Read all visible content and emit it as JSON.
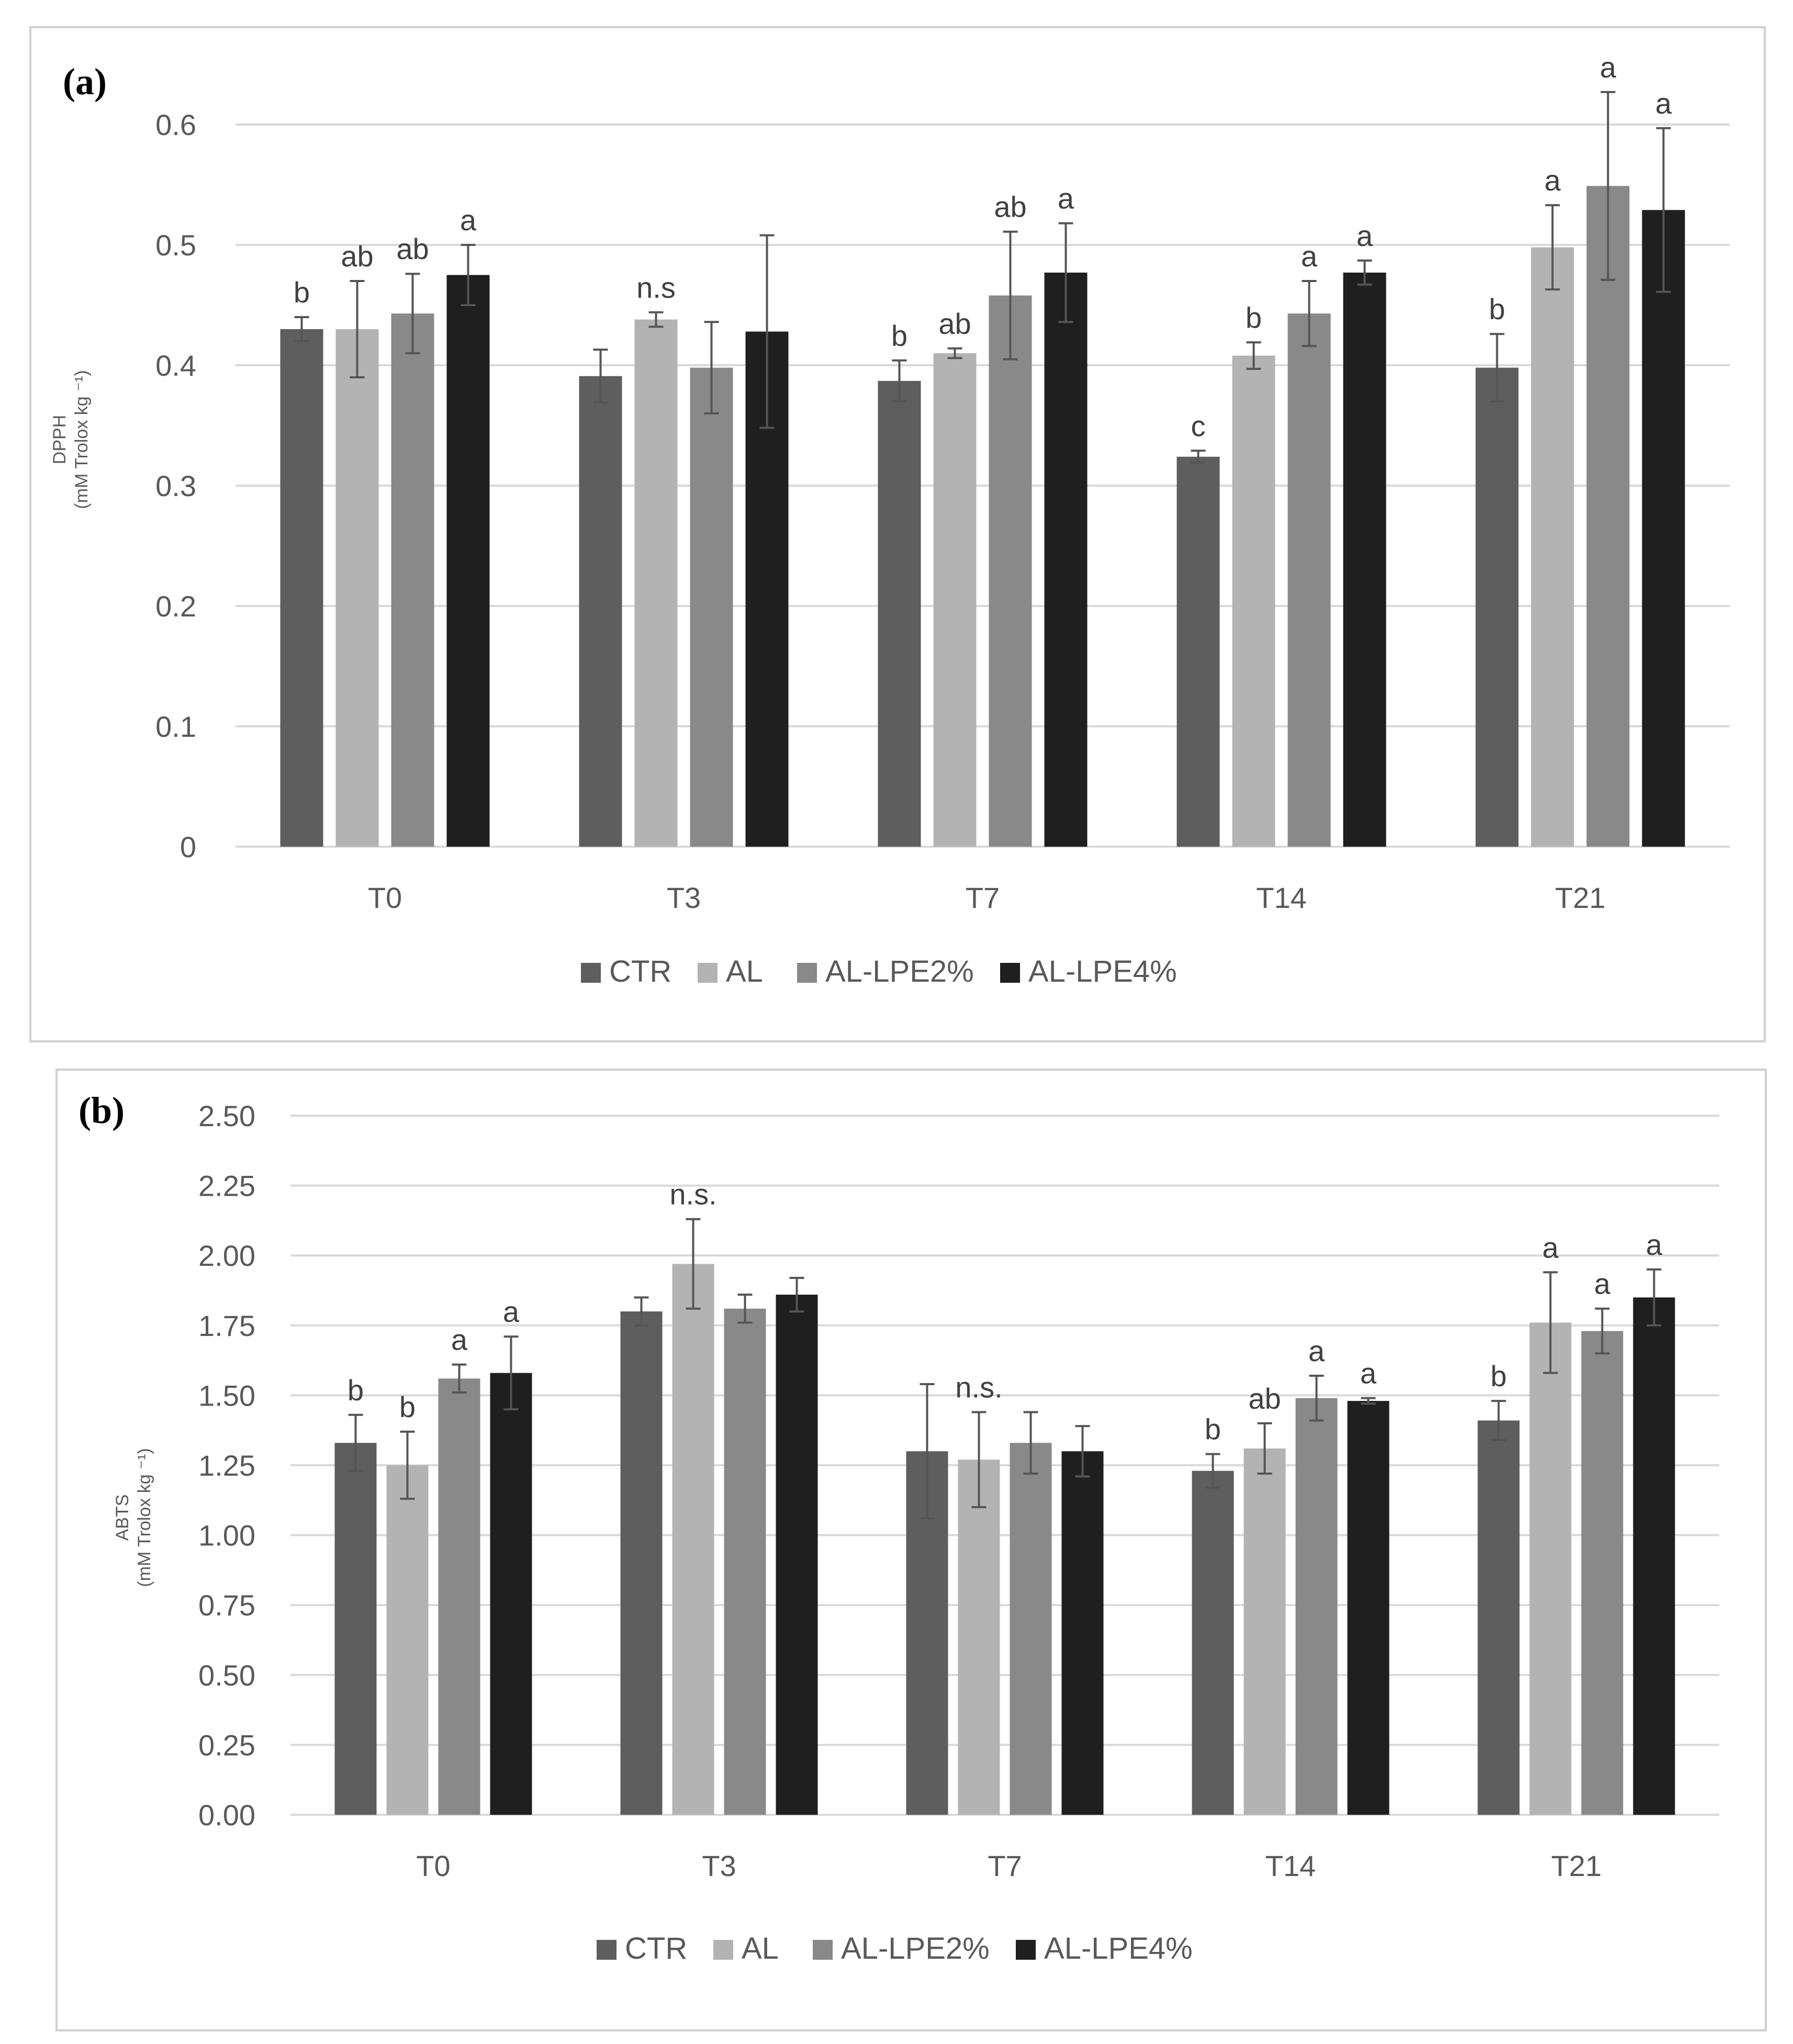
{
  "chart_data": [
    {
      "type": "bar",
      "panel_label": "(a)",
      "ylabel_line1": "DPPH",
      "ylabel_line2": "(mM Trolox kg ⁻¹)",
      "categories": [
        "T0",
        "T3",
        "T7",
        "T14",
        "T21"
      ],
      "ylim": [
        0,
        0.6
      ],
      "yticks": [
        "0",
        "0.1",
        "0.2",
        "0.3",
        "0.4",
        "0.5",
        "0.6"
      ],
      "ytick_values": [
        0,
        0.1,
        0.2,
        0.3,
        0.4,
        0.5,
        0.6
      ],
      "grid": true,
      "legend_position": "bottom",
      "series": [
        {
          "name": "CTR",
          "color": "#5e5e5e",
          "values": [
            0.43,
            0.391,
            0.387,
            0.324,
            0.398
          ],
          "errors": [
            0.01,
            0.022,
            0.017,
            0.005,
            0.028
          ],
          "labels": [
            "b",
            "",
            "b",
            "c",
            "b"
          ]
        },
        {
          "name": "AL",
          "color": "#b3b3b3",
          "values": [
            0.43,
            0.438,
            0.41,
            0.408,
            0.498
          ],
          "errors": [
            0.04,
            0.006,
            0.004,
            0.011,
            0.035
          ],
          "labels": [
            "ab",
            "n.s",
            "ab",
            "b",
            "a"
          ]
        },
        {
          "name": "AL-LPE2%",
          "color": "#898989",
          "values": [
            0.443,
            0.398,
            0.458,
            0.443,
            0.549
          ],
          "errors": [
            0.033,
            0.038,
            0.053,
            0.027,
            0.078
          ],
          "labels": [
            "ab",
            "",
            "ab",
            "a",
            "a"
          ]
        },
        {
          "name": "AL-LPE4%",
          "color": "#1f1f1f",
          "values": [
            0.475,
            0.428,
            0.477,
            0.477,
            0.529
          ],
          "errors": [
            0.025,
            0.08,
            0.041,
            0.01,
            0.068
          ],
          "labels": [
            "a",
            "",
            "a",
            "a",
            "a"
          ]
        }
      ]
    },
    {
      "type": "bar",
      "panel_label": "(b)",
      "ylabel_line1": "ABTS",
      "ylabel_line2": "(mM Trolox kg ⁻¹)",
      "categories": [
        "T0",
        "T3",
        "T7",
        "T14",
        "T21"
      ],
      "ylim": [
        0,
        2.5
      ],
      "yticks": [
        "0.00",
        "0.25",
        "0.50",
        "0.75",
        "1.00",
        "1.25",
        "1.50",
        "1.75",
        "2.00",
        "2.25",
        "2.50"
      ],
      "ytick_values": [
        0,
        0.25,
        0.5,
        0.75,
        1.0,
        1.25,
        1.5,
        1.75,
        2.0,
        2.25,
        2.5
      ],
      "grid": true,
      "legend_position": "bottom",
      "series": [
        {
          "name": "CTR",
          "color": "#5e5e5e",
          "values": [
            1.33,
            1.8,
            1.3,
            1.23,
            1.41
          ],
          "errors": [
            0.1,
            0.05,
            0.24,
            0.06,
            0.07
          ],
          "labels": [
            "b",
            "",
            "",
            "b",
            "b"
          ]
        },
        {
          "name": "AL",
          "color": "#b3b3b3",
          "values": [
            1.25,
            1.97,
            1.27,
            1.31,
            1.76
          ],
          "errors": [
            0.12,
            0.16,
            0.17,
            0.09,
            0.18
          ],
          "labels": [
            "b",
            "n.s.",
            "n.s.",
            "ab",
            "a"
          ]
        },
        {
          "name": "AL-LPE2%",
          "color": "#898989",
          "values": [
            1.56,
            1.81,
            1.33,
            1.49,
            1.73
          ],
          "errors": [
            0.05,
            0.05,
            0.11,
            0.08,
            0.08
          ],
          "labels": [
            "a",
            "",
            "",
            "a",
            "a"
          ]
        },
        {
          "name": "AL-LPE4%",
          "color": "#1f1f1f",
          "values": [
            1.58,
            1.86,
            1.3,
            1.48,
            1.85
          ],
          "errors": [
            0.13,
            0.06,
            0.09,
            0.01,
            0.1
          ],
          "labels": [
            "a",
            "",
            "",
            "a",
            "a"
          ]
        }
      ]
    }
  ]
}
